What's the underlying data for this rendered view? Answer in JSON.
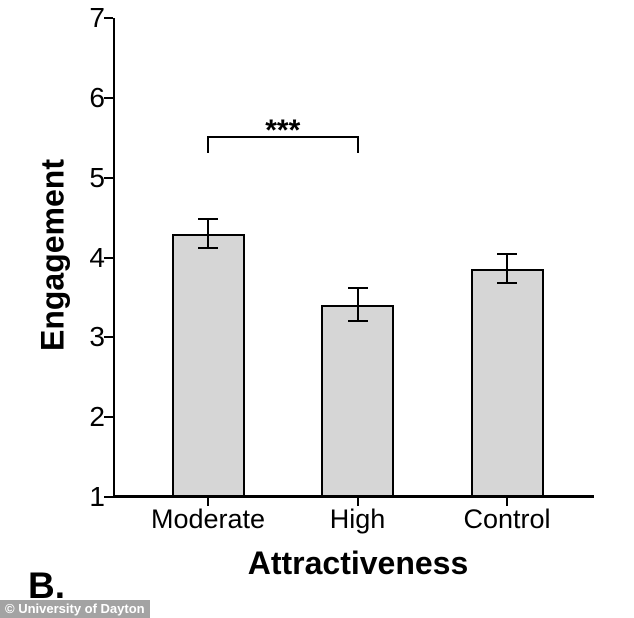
{
  "chart_data": {
    "type": "bar",
    "title": "",
    "categories": [
      "Moderate",
      "High",
      "Control"
    ],
    "values": [
      4.3,
      3.41,
      3.86
    ],
    "errors": [
      0.18,
      0.21,
      0.18
    ],
    "xlabel": "Attractiveness",
    "ylabel": "Engagement",
    "ylim": [
      1,
      7
    ],
    "yticks": [
      1,
      2,
      3,
      4,
      5,
      6,
      7
    ],
    "grid": false,
    "bar_color": "#d6d6d6",
    "significance": {
      "label": "***",
      "from": "Moderate",
      "to": "High"
    }
  },
  "panel_label": "B.",
  "watermark": {
    "text": "© University of Dayton",
    "bg": "#a3a3a3",
    "fg": "#ffffff"
  }
}
